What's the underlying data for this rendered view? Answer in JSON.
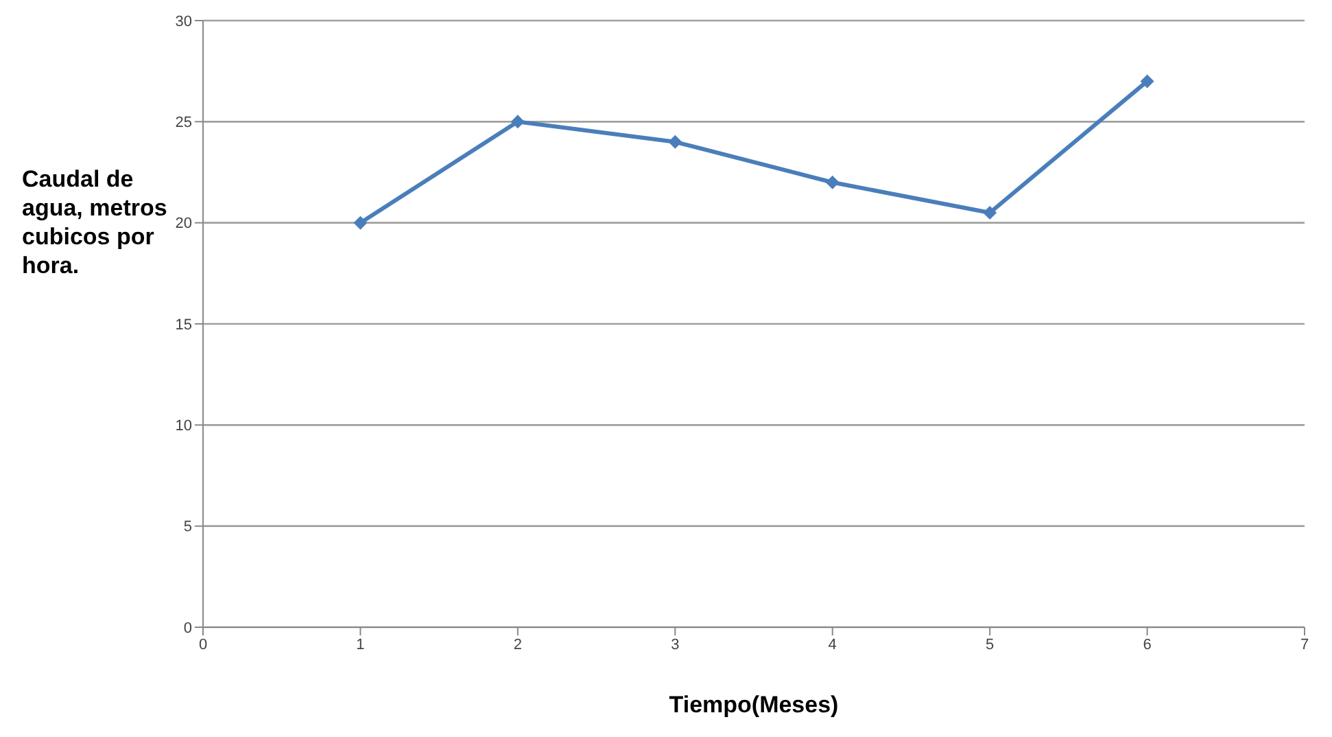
{
  "chart_data": {
    "type": "line",
    "xlabel": "Tiempo(Meses)",
    "ylabel": "Caudal de agua, metros cubicos por hora.",
    "x": [
      1,
      2,
      3,
      4,
      5,
      6
    ],
    "series": [
      {
        "color": "#4a7ebb",
        "values": [
          20,
          25,
          24,
          22,
          20.5,
          27
        ]
      }
    ],
    "xlim": [
      0,
      7
    ],
    "xticks": [
      0,
      1,
      2,
      3,
      4,
      5,
      6,
      7
    ],
    "ylim": [
      0,
      30
    ],
    "yticks": [
      0,
      5,
      10,
      15,
      20,
      25,
      30
    ],
    "grid": "y",
    "marker": "diamond",
    "line_style": "solid",
    "legend": false
  }
}
